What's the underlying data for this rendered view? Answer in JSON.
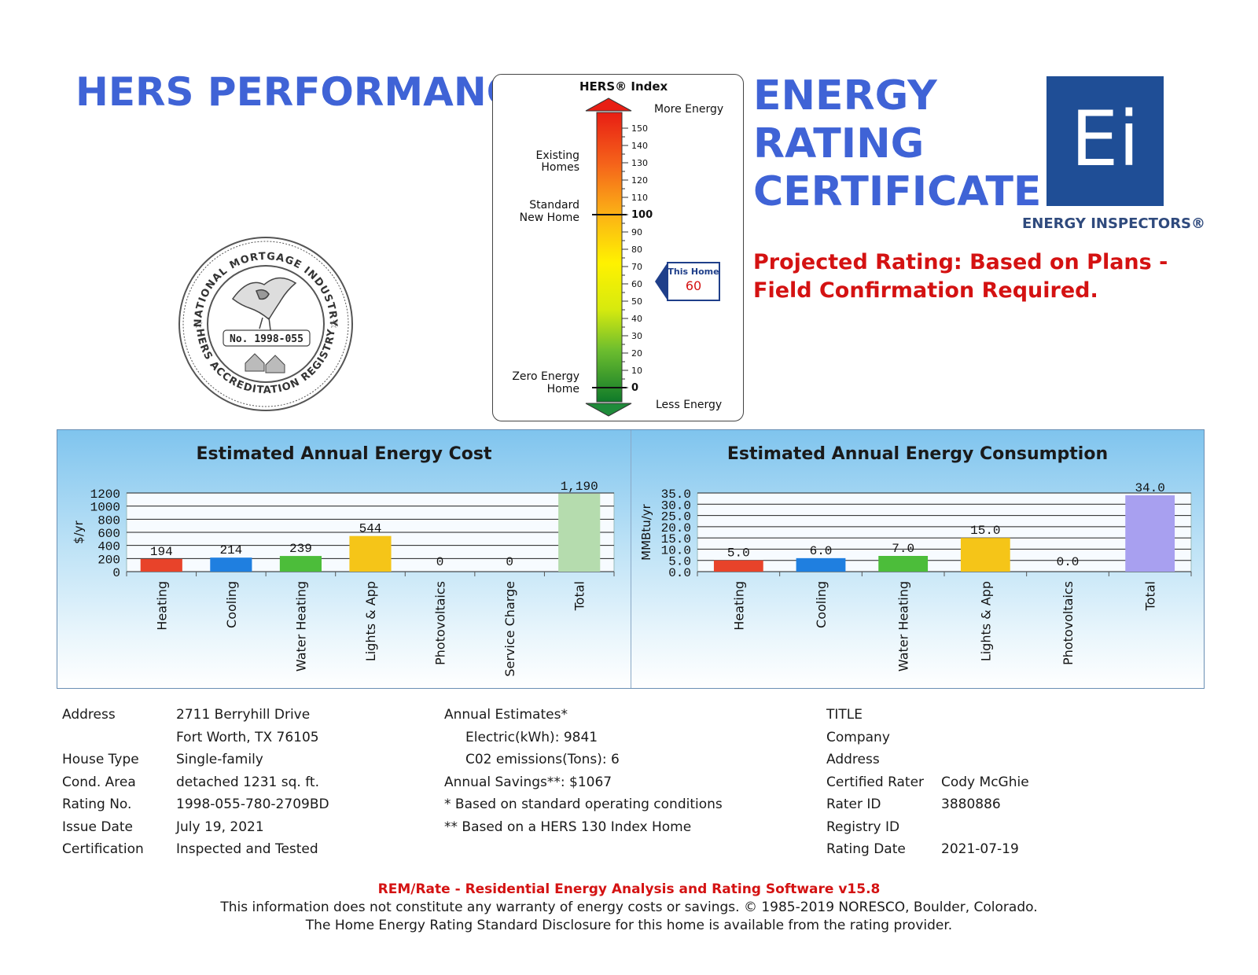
{
  "header": {
    "hers_performance": "HERS PERFORMANCE",
    "certificate_lines": [
      "ENERGY",
      "RATING",
      "CERTIFICATE"
    ],
    "projected_note": "Projected Rating: Based on Plans - Field Confirmation Required."
  },
  "logo": {
    "mark": "Ei",
    "company": "ENERGY INSPECTORS®",
    "color": "#1f4e96"
  },
  "seal": {
    "top_text": "NATIONAL MORTGAGE INDUSTRY",
    "bottom_text": "HERS ACCREDITATION REGISTRY",
    "number": "No. 1998-055"
  },
  "hers_index": {
    "title": "HERS® Index",
    "more_energy": "More Energy",
    "less_energy": "Less Energy",
    "ticks": [
      150,
      140,
      130,
      120,
      110,
      100,
      90,
      80,
      70,
      60,
      50,
      40,
      30,
      20,
      10,
      0
    ],
    "labels": {
      "existing": [
        "Existing",
        "Homes"
      ],
      "standard": [
        "Standard",
        "New Home"
      ],
      "zero": [
        "Zero Energy",
        "Home"
      ]
    },
    "this_home_label": "This Home",
    "this_home_value": 60
  },
  "chart_data": [
    {
      "type": "bar",
      "title": "Estimated Annual Energy Cost",
      "ylabel": "$/yr",
      "categories": [
        "Heating",
        "Cooling",
        "Water Heating",
        "Lights & App",
        "Photovoltaics",
        "Service Charge",
        "Total"
      ],
      "values": [
        194,
        214,
        239,
        544,
        0,
        0,
        1190
      ],
      "value_labels": [
        "194",
        "214",
        "239",
        "544",
        "0",
        "0",
        "1,190"
      ],
      "yticks": [
        "1200",
        "1000",
        "800",
        "600",
        "400",
        "200",
        "0"
      ],
      "ylim": [
        0,
        1200
      ],
      "colors": [
        "#e8432a",
        "#1f7fe0",
        "#4cbd3a",
        "#f5c518",
        "#cccccc",
        "#cccccc",
        "#b5dcae"
      ]
    },
    {
      "type": "bar",
      "title": "Estimated Annual Energy Consumption",
      "ylabel": "MMBtu/yr",
      "categories": [
        "Heating",
        "Cooling",
        "Water Heating",
        "Lights & App",
        "Photovoltaics",
        "Total"
      ],
      "values": [
        5.0,
        6.0,
        7.0,
        15.0,
        0.0,
        34.0
      ],
      "value_labels": [
        "5.0",
        "6.0",
        "7.0",
        "15.0",
        "0.0",
        "34.0"
      ],
      "yticks": [
        "35.0",
        "30.0",
        "25.0",
        "20.0",
        "15.0",
        "10.0",
        "5.0",
        "0.0"
      ],
      "ylim": [
        0,
        35
      ],
      "colors": [
        "#e8432a",
        "#1f7fe0",
        "#4cbd3a",
        "#f5c518",
        "#cccccc",
        "#a8a0f0"
      ]
    }
  ],
  "property": {
    "address_label": "Address",
    "address_line1": "2711 Berryhill Drive",
    "address_line2": "Fort Worth, TX 76105",
    "house_type_label": "House Type",
    "house_type": "Single-family",
    "cond_area_label": "Cond. Area",
    "cond_area": "detached 1231 sq. ft.",
    "rating_no_label": "Rating No.",
    "rating_no": "1998-055-780-2709BD",
    "issue_date_label": "Issue Date",
    "issue_date": "July 19, 2021",
    "certification_label": "Certification",
    "certification": "Inspected and Tested"
  },
  "estimates": {
    "title": "Annual Estimates*",
    "electric": "Electric(kWh):  9841",
    "co2": "C02 emissions(Tons): 6",
    "savings": "Annual Savings**:  $1067",
    "note1": "* Based on standard operating conditions",
    "note2": "** Based on a HERS 130 Index Home"
  },
  "rater": {
    "title": "TITLE",
    "company": "Company",
    "address": "Address",
    "certified_rater_label": "Certified Rater",
    "certified_rater": "Cody McGhie",
    "rater_id_label": "Rater ID",
    "rater_id": "3880886",
    "registry_id_label": "Registry ID",
    "rating_date_label": "Rating Date",
    "rating_date": "2021-07-19"
  },
  "footer": {
    "software": "REM/Rate - Residential Energy Analysis and Rating Software v15.8",
    "disclaimer": "This information does not constitute any warranty of energy costs or savings. © 1985-2019 NORESCO, Boulder, Colorado.",
    "disclosure": "The Home Energy Rating Standard Disclosure for this home is available from the rating provider."
  }
}
